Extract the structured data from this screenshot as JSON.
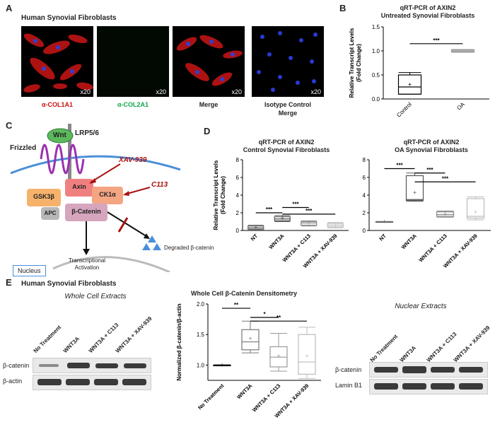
{
  "panel_a": {
    "letter": "A",
    "title": "Human Synovial Fibroblasts",
    "magnification": "x20",
    "captions": {
      "col1a1": "α-COL1A1",
      "col2a1": "α-COL2A1",
      "merge": "Merge",
      "isotype_line1": "Isotype Control",
      "isotype_line2": "Merge"
    },
    "colors": {
      "col1a1": "#cc1111",
      "col2a1": "#11a84a",
      "merge": "#111111"
    }
  },
  "panel_b": {
    "letter": "B",
    "title_line1": "qRT-PCR of AXIN2",
    "title_line2": "Untreated Synovial Fibroblasts",
    "ylabel_line1": "Relative Transcript Levels",
    "ylabel_line2": "(Fold Change)",
    "significance": "***"
  },
  "panel_c": {
    "letter": "C",
    "labels": {
      "wnt": "Wnt",
      "lrp": "LRP5/6",
      "frizzled": "Frizzled",
      "xav": "XAV-939",
      "c113": "C113",
      "axin": "Axin",
      "gsk": "GSK3β",
      "ck1": "CK1α",
      "apc": "APC",
      "bcat": "β-Catenin",
      "degraded": "Degraded β-catenin",
      "nucleus": "Nucleus",
      "trans_line1": "Transcriptional",
      "trans_line2": "Activation"
    },
    "colors": {
      "wnt": "#5cb85c",
      "axin": "#f08080",
      "ck1": "#f4a582",
      "gsk": "#f6b26b",
      "bcat": "#d5a6bd",
      "apc": "#b7b7b7",
      "frizzled": "#9b30b0",
      "inhibitor": "#aa1111"
    }
  },
  "panel_d": {
    "letter": "D",
    "ylabel_line1": "Relative Transcript Levels",
    "ylabel_line2": "(Fold Change)",
    "left_title_line1": "qRT-PCR of AXIN2",
    "left_title_line2": "Control Synovial Fibroblasts",
    "right_title_line1": "qRT-PCR of AXIN2",
    "right_title_line2": "OA Synovial Fibroblasts",
    "significance": "***"
  },
  "panel_e": {
    "letter": "E",
    "title": "Human Synovial Fibroblasts",
    "whole_cell_title": "Whole Cell Extracts",
    "nuclear_title": "Nuclear Extracts",
    "lanes": [
      "No Treatment",
      "WNT3A",
      "WNT3A + C113",
      "WNT3A + XAV-939"
    ],
    "blot_labels_left": [
      "β-catenin",
      "β-actin"
    ],
    "blot_labels_right": [
      "β-catenin",
      "Lamin B1"
    ],
    "densitometry_title": "Whole Cell β-Catenin Densitometry",
    "ylabel": "Normalized β-catenin/β-actin",
    "sig_double": "**",
    "sig_single": "*"
  },
  "chart_data": [
    {
      "id": "B",
      "type": "box",
      "title": "qRT-PCR of AXIN2 Untreated Synovial Fibroblasts",
      "ylabel": "Relative Transcript Levels (Fold Change)",
      "ylim": [
        0.0,
        1.5
      ],
      "yticks": [
        "0.0",
        "0.5",
        "1.0",
        "1.5"
      ],
      "categories": [
        "Control",
        "OA"
      ],
      "boxes": [
        {
          "min": 0.1,
          "q1": 0.1,
          "median": 0.25,
          "q3": 0.5,
          "max": 0.55,
          "mean": 0.3,
          "color": "#000000"
        },
        {
          "min": 0.97,
          "q1": 0.98,
          "median": 1.0,
          "q3": 1.02,
          "max": 1.03,
          "mean": 1.0,
          "color": "#999999"
        }
      ]
    },
    {
      "id": "D-left",
      "type": "box",
      "ylim": [
        0,
        8
      ],
      "yticks": [
        "0",
        "2",
        "4",
        "6",
        "8"
      ],
      "categories": [
        "NT",
        "WNT3A",
        "WNT3A + C113",
        "WNT3A + XAV-939"
      ],
      "boxes": [
        {
          "min": 0.1,
          "q1": 0.15,
          "median": 0.3,
          "q3": 0.5,
          "max": 0.6,
          "mean": 0.35,
          "color": "#666666"
        },
        {
          "min": 1.0,
          "q1": 1.1,
          "median": 1.3,
          "q3": 1.55,
          "max": 1.7,
          "mean": 1.35,
          "color": "#555555"
        },
        {
          "min": 0.5,
          "q1": 0.6,
          "median": 0.85,
          "q3": 1.0,
          "max": 1.1,
          "mean": 0.85,
          "color": "#888888"
        },
        {
          "min": 0.3,
          "q1": 0.4,
          "median": 0.6,
          "q3": 0.8,
          "max": 0.9,
          "mean": 0.6,
          "color": "#bbbbbb"
        }
      ]
    },
    {
      "id": "D-right",
      "type": "box",
      "ylim": [
        0,
        8
      ],
      "yticks": [
        "0",
        "2",
        "4",
        "6",
        "8"
      ],
      "categories": [
        "NT",
        "WNT3A",
        "WNT3A + C113",
        "WNT3A + XAV-939"
      ],
      "boxes": [
        {
          "min": 1.0,
          "q1": 1.0,
          "median": 1.0,
          "q3": 1.0,
          "max": 1.0,
          "mean": 1.0,
          "color": "#666666"
        },
        {
          "min": 3.3,
          "q1": 3.4,
          "median": 3.5,
          "q3": 6.2,
          "max": 6.5,
          "mean": 4.3,
          "color": "#555555"
        },
        {
          "min": 1.5,
          "q1": 1.6,
          "median": 1.8,
          "q3": 2.1,
          "max": 2.2,
          "mean": 1.85,
          "color": "#888888"
        },
        {
          "min": 1.2,
          "q1": 1.4,
          "median": 1.6,
          "q3": 3.6,
          "max": 3.8,
          "mean": 2.1,
          "color": "#bbbbbb"
        }
      ]
    },
    {
      "id": "E",
      "type": "box",
      "title": "Whole Cell β-Catenin Densitometry",
      "ylabel": "Normalized β-catenin/β-actin",
      "ylim": [
        0.75,
        2.0
      ],
      "yticks": [
        "1.0",
        "1.5",
        "2.0"
      ],
      "categories": [
        "No Treatment",
        "WNT3A",
        "WNT3A + C113",
        "WNT3A + XAV-939"
      ],
      "boxes": [
        {
          "min": 1.0,
          "q1": 1.0,
          "median": 1.0,
          "q3": 1.0,
          "max": 1.0,
          "mean": 1.0,
          "color": "#000000"
        },
        {
          "min": 1.2,
          "q1": 1.25,
          "median": 1.38,
          "q3": 1.58,
          "max": 1.72,
          "mean": 1.43,
          "color": "#777777"
        },
        {
          "min": 0.9,
          "q1": 0.97,
          "median": 1.13,
          "q3": 1.3,
          "max": 1.52,
          "mean": 1.15,
          "color": "#999999"
        },
        {
          "min": 0.78,
          "q1": 0.85,
          "median": 1.05,
          "q3": 1.5,
          "max": 1.62,
          "mean": 1.15,
          "color": "#bbbbbb"
        }
      ]
    }
  ]
}
